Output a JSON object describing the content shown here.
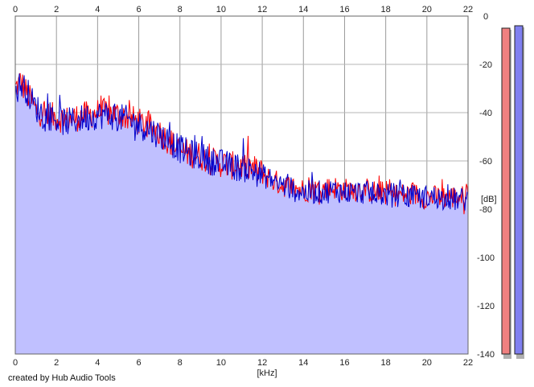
{
  "chart_data": {
    "type": "area",
    "xlabel": "[kHz]",
    "ylabel": "[dB]",
    "xlim": [
      0,
      22
    ],
    "ylim": [
      -140,
      0
    ],
    "x_ticks": [
      0,
      2,
      4,
      6,
      8,
      10,
      12,
      14,
      16,
      18,
      20,
      22
    ],
    "y_ticks": [
      0,
      -20,
      -40,
      -60,
      -80,
      -100,
      -120,
      -140
    ],
    "grid": true,
    "series": [
      {
        "color": "#ff0000",
        "x": [
          0,
          0.25,
          0.5,
          0.75,
          1,
          1.5,
          2,
          2.5,
          3,
          3.5,
          4,
          4.5,
          5,
          5.5,
          6,
          6.5,
          7,
          7.5,
          8,
          8.5,
          9,
          9.5,
          10,
          10.5,
          11,
          11.5,
          12,
          12.5,
          13,
          13.5,
          14,
          14.5,
          15,
          15.5,
          16,
          16.5,
          17,
          17.5,
          18,
          18.5,
          19,
          19.5,
          20,
          20.5,
          21,
          21.5,
          22
        ],
        "values": [
          -30,
          -27,
          -31,
          -35,
          -39,
          -41,
          -42,
          -43,
          -42,
          -41,
          -40,
          -40,
          -41,
          -42,
          -44,
          -46,
          -48,
          -52,
          -56,
          -57,
          -58,
          -60,
          -61,
          -62,
          -62,
          -63,
          -65,
          -68,
          -70,
          -71,
          -72,
          -72,
          -72,
          -71,
          -72,
          -72,
          -72,
          -73,
          -73,
          -74,
          -74,
          -74,
          -75,
          -75,
          -75,
          -75,
          -75
        ]
      },
      {
        "color": "#0000cc",
        "x": [
          0,
          0.25,
          0.5,
          0.75,
          1,
          1.5,
          2,
          2.5,
          3,
          3.5,
          4,
          4.5,
          5,
          5.5,
          6,
          6.5,
          7,
          7.5,
          8,
          8.5,
          9,
          9.5,
          10,
          10.5,
          11,
          11.5,
          12,
          12.5,
          13,
          13.5,
          14,
          14.5,
          15,
          15.5,
          16,
          16.5,
          17,
          17.5,
          18,
          18.5,
          19,
          19.5,
          20,
          20.5,
          21,
          21.5,
          22
        ],
        "values": [
          -32,
          -28,
          -30,
          -34,
          -38,
          -41,
          -43,
          -44,
          -43,
          -42,
          -41,
          -41,
          -42,
          -43,
          -45,
          -47,
          -49,
          -52,
          -55,
          -57,
          -58,
          -60,
          -61,
          -62,
          -63,
          -64,
          -66,
          -68,
          -70,
          -72,
          -73,
          -73,
          -73,
          -72,
          -73,
          -73,
          -73,
          -74,
          -74,
          -74,
          -75,
          -75,
          -75,
          -75,
          -76,
          -76,
          -76
        ]
      }
    ],
    "fill_color": "#c0c0ff",
    "meters": [
      {
        "color": "#f08080",
        "level_db": -5
      },
      {
        "color": "#8080f0",
        "level_db": -4
      }
    ]
  },
  "credit": "created by Hub Audio Tools"
}
